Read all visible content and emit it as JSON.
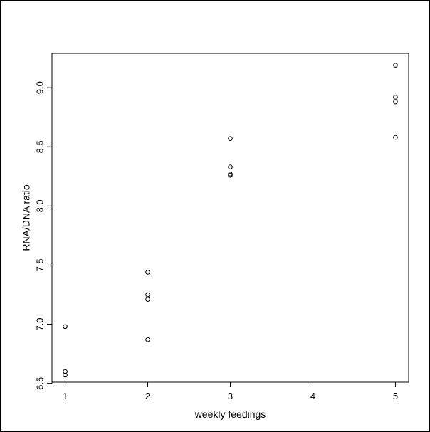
{
  "chart_data": {
    "type": "scatter",
    "title": "",
    "xlabel": "weekly feedings",
    "ylabel": "RNA/DNA ratio",
    "xlim": [
      0.84,
      5.16
    ],
    "ylim": [
      6.51,
      9.29
    ],
    "x_ticks": [
      1,
      2,
      3,
      4,
      5
    ],
    "y_ticks": [
      6.5,
      7.0,
      7.5,
      8.0,
      8.5,
      9.0
    ],
    "x_tick_labels": [
      "1",
      "2",
      "3",
      "4",
      "5"
    ],
    "y_tick_labels": [
      "6.5",
      "7.0",
      "7.5",
      "8.0",
      "8.5",
      "9.0"
    ],
    "grid": false,
    "marker": "open-circle",
    "points": [
      {
        "x": 1,
        "y": 6.98
      },
      {
        "x": 1,
        "y": 6.6
      },
      {
        "x": 1,
        "y": 6.57
      },
      {
        "x": 2,
        "y": 7.44
      },
      {
        "x": 2,
        "y": 7.25
      },
      {
        "x": 2,
        "y": 7.21
      },
      {
        "x": 2,
        "y": 6.87
      },
      {
        "x": 3,
        "y": 8.57
      },
      {
        "x": 3,
        "y": 8.33
      },
      {
        "x": 3,
        "y": 8.27
      },
      {
        "x": 3,
        "y": 8.26
      },
      {
        "x": 5,
        "y": 9.19
      },
      {
        "x": 5,
        "y": 8.92
      },
      {
        "x": 5,
        "y": 8.88
      },
      {
        "x": 5,
        "y": 8.58
      }
    ]
  }
}
